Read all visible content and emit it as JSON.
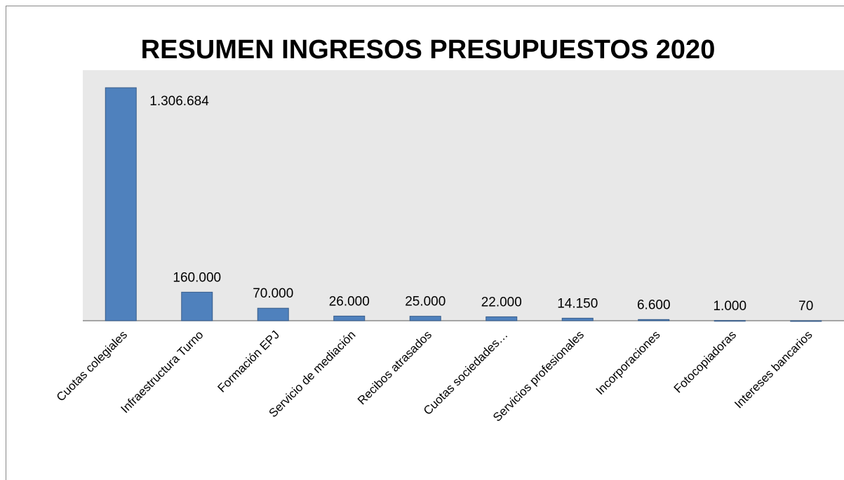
{
  "chart_data": {
    "type": "bar",
    "title": "RESUMEN INGRESOS PRESUPUESTOS 2020",
    "categories": [
      "Cuotas colegiales",
      "Infraestructura Turno",
      "Formación EPJ",
      "Servicio de mediación",
      "Recibos atrasados",
      "Cuotas sociedades…",
      "Servicios profesionales",
      "Incorporaciones",
      "Fotocopiadoras",
      "Intereses bancarios"
    ],
    "values": [
      1306684,
      160000,
      70000,
      26000,
      25000,
      22000,
      14150,
      6600,
      1000,
      70
    ],
    "value_labels": [
      "1.306.684",
      "160.000",
      "70.000",
      "26.000",
      "25.000",
      "22.000",
      "14.150",
      "6.600",
      "1.000",
      "70"
    ],
    "color": "#4f81bd"
  }
}
